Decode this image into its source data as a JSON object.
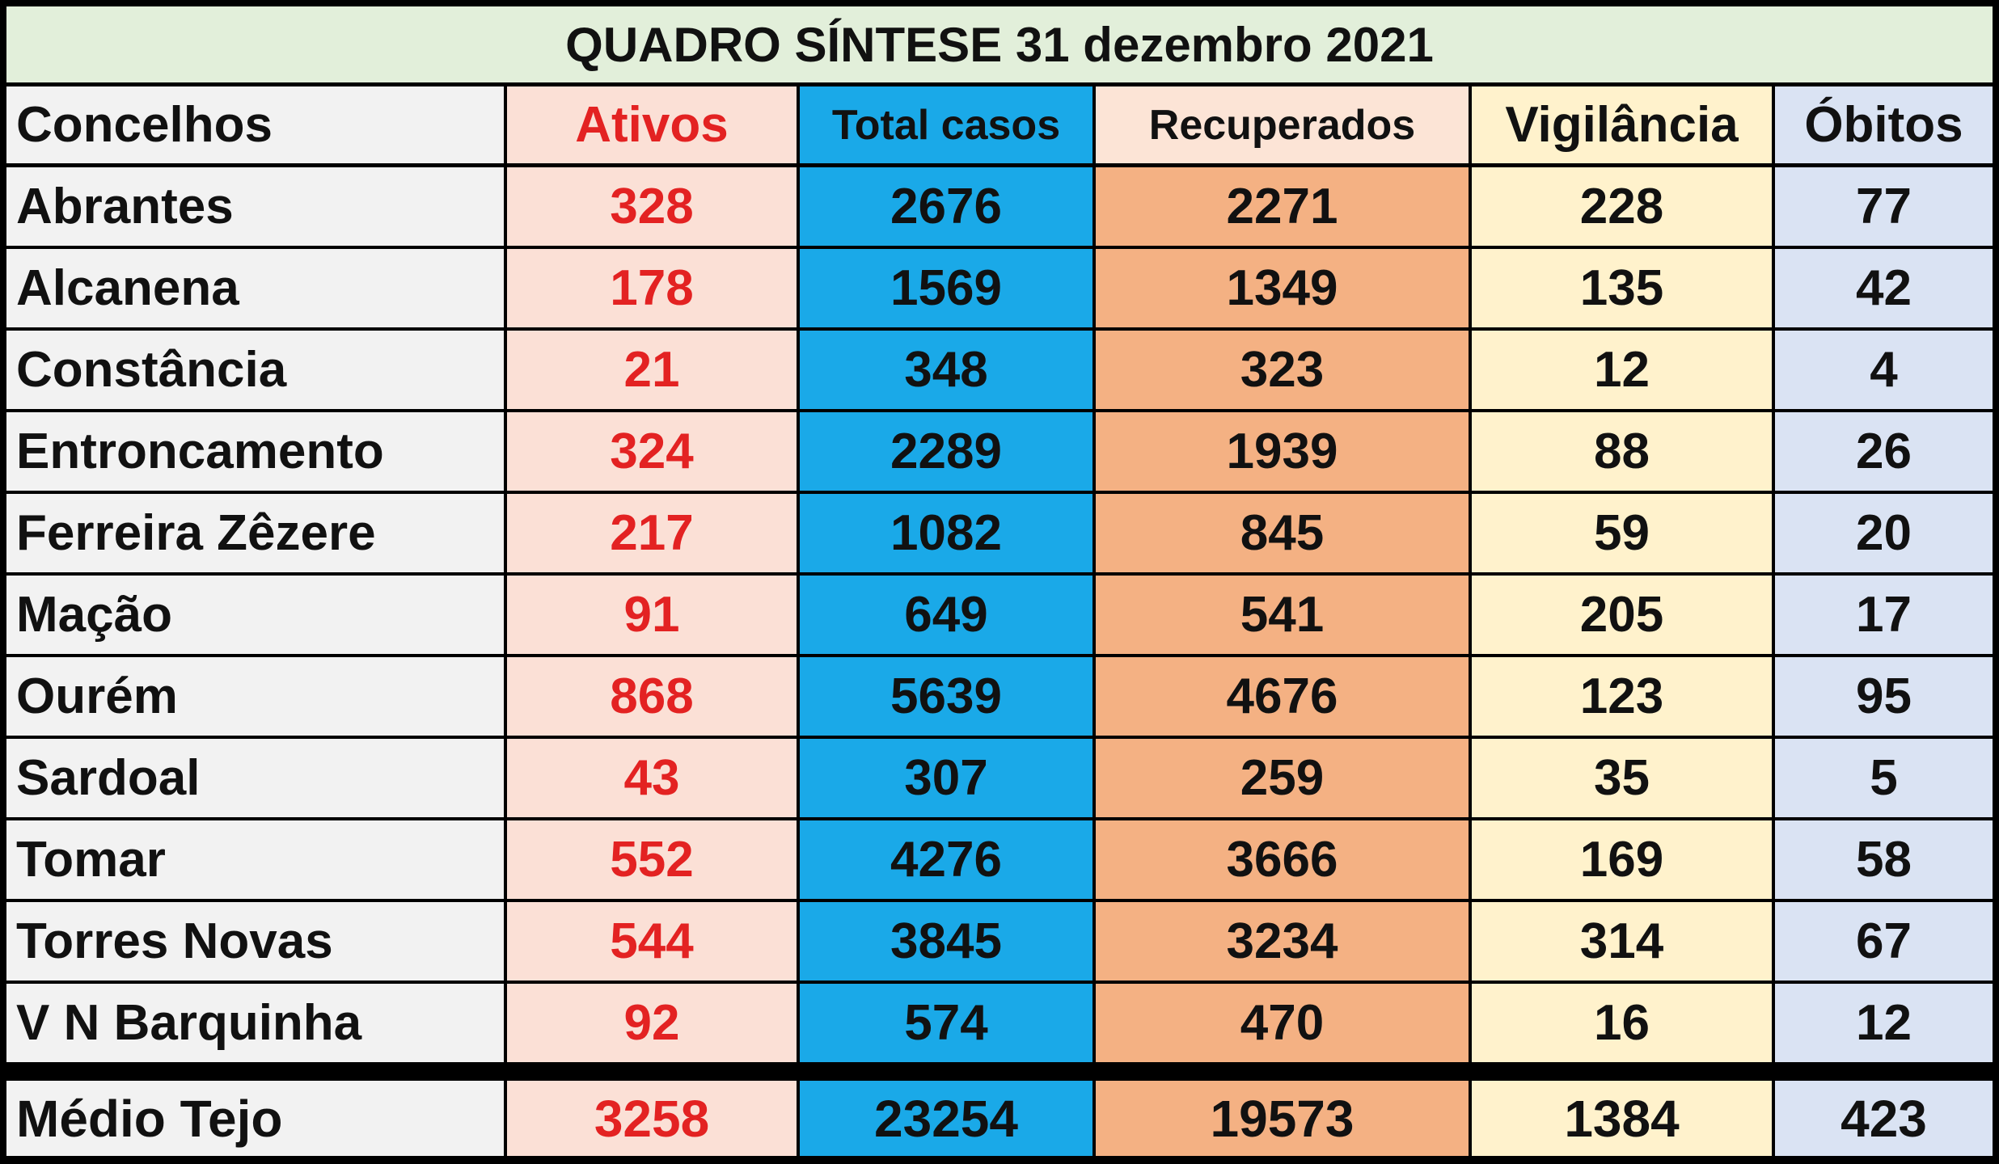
{
  "table": {
    "title": "QUADRO SÍNTESE 31 dezembro 2021",
    "columns": [
      "Concelhos",
      "Ativos",
      "Total casos",
      "Recuperados",
      "Vigilância",
      "Óbitos"
    ],
    "rows": [
      [
        "Abrantes",
        328,
        2676,
        2271,
        228,
        77
      ],
      [
        "Alcanena",
        178,
        1569,
        1349,
        135,
        42
      ],
      [
        "Constância",
        21,
        348,
        323,
        12,
        4
      ],
      [
        "Entroncamento",
        324,
        2289,
        1939,
        88,
        26
      ],
      [
        "Ferreira Zêzere",
        217,
        1082,
        845,
        59,
        20
      ],
      [
        "Mação",
        91,
        649,
        541,
        205,
        17
      ],
      [
        "Ourém",
        868,
        5639,
        4676,
        123,
        95
      ],
      [
        "Sardoal",
        43,
        307,
        259,
        35,
        5
      ],
      [
        "Tomar",
        552,
        4276,
        3666,
        169,
        58
      ],
      [
        "Torres Novas",
        544,
        3845,
        3234,
        314,
        67
      ],
      [
        "V N Barquinha",
        92,
        574,
        470,
        16,
        12
      ]
    ],
    "total": [
      "Médio Tejo",
      3258,
      23254,
      19573,
      1384,
      423
    ]
  }
}
